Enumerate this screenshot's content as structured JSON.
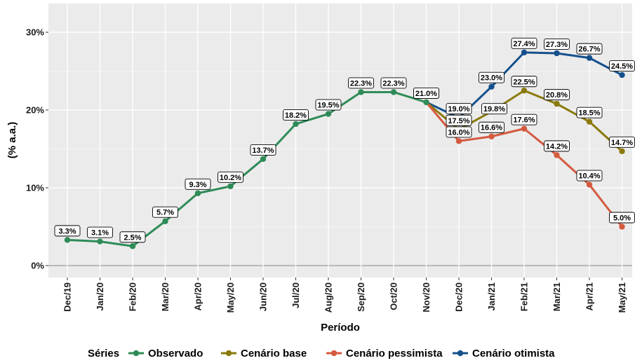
{
  "chart_data": {
    "type": "line",
    "xlabel": "Período",
    "ylabel": "(% a.a.)",
    "categories": [
      "Dec/19",
      "Jan/20",
      "Feb/20",
      "Mar/20",
      "Apr/20",
      "May/20",
      "Jun/20",
      "Jul/20",
      "Aug/20",
      "Sep/20",
      "Oct/20",
      "Nov/20",
      "Dec/20",
      "Jan/21",
      "Feb/21",
      "Mar/21",
      "Apr/21",
      "May/21"
    ],
    "ylim": [
      0,
      32.5
    ],
    "yticks": [
      0,
      10,
      20,
      30
    ],
    "ytick_labels": [
      "0%",
      "10%",
      "20%",
      "30%"
    ],
    "grid": true,
    "legend": {
      "title": "Séries",
      "position": "bottom",
      "entries": [
        "Observado",
        "Cenário base",
        "Cenário pessimista",
        "Cenário otimista"
      ]
    },
    "series": [
      {
        "name": "Observado",
        "color": "#2e8b57",
        "x": [
          "Dec/19",
          "Jan/20",
          "Feb/20",
          "Mar/20",
          "Apr/20",
          "May/20",
          "Jun/20",
          "Jul/20",
          "Aug/20",
          "Sep/20",
          "Oct/20",
          "Nov/20"
        ],
        "values": [
          3.3,
          3.1,
          2.5,
          5.7,
          9.3,
          10.2,
          13.7,
          18.2,
          19.5,
          22.3,
          22.3,
          21.0
        ],
        "labels": [
          "3.3%",
          "3.1%",
          "2.5%",
          "5.7%",
          "9.3%",
          "10.2%",
          "13.7%",
          "18.2%",
          "19.5%",
          "22.3%",
          "22.3%",
          "21.0%"
        ],
        "label_pos": [
          "above",
          "above",
          "above",
          "above",
          "above",
          "above",
          "above",
          "above",
          "above",
          "above",
          "above",
          "above"
        ]
      },
      {
        "name": "Cenário base",
        "color": "#8b7a0c",
        "x": [
          "Nov/20",
          "Dec/20",
          "Jan/21",
          "Feb/21",
          "Mar/21",
          "Apr/21",
          "May/21"
        ],
        "values": [
          21.0,
          17.5,
          19.8,
          22.5,
          20.8,
          18.5,
          14.7
        ],
        "labels": [
          "",
          "17.5%",
          "19.8%",
          "22.5%",
          "20.8%",
          "18.5%",
          "14.7%"
        ],
        "label_pos": [
          "none",
          "above",
          "right",
          "above",
          "above",
          "above",
          "above"
        ]
      },
      {
        "name": "Cenário pessimista",
        "color": "#d45a3f",
        "x": [
          "Nov/20",
          "Dec/20",
          "Jan/21",
          "Feb/21",
          "Mar/21",
          "Apr/21",
          "May/21"
        ],
        "values": [
          21.0,
          16.0,
          16.6,
          17.6,
          14.2,
          10.4,
          5.0
        ],
        "labels": [
          "",
          "16.0%",
          "16.6%",
          "17.6%",
          "14.2%",
          "10.4%",
          "5.0%"
        ],
        "label_pos": [
          "none",
          "above",
          "above",
          "above",
          "above",
          "above",
          "above"
        ]
      },
      {
        "name": "Cenário otimista",
        "color": "#15508c",
        "x": [
          "Nov/20",
          "Dec/20",
          "Jan/21",
          "Feb/21",
          "Mar/21",
          "Apr/21",
          "May/21"
        ],
        "values": [
          21.0,
          19.0,
          23.0,
          27.4,
          27.3,
          26.7,
          24.5
        ],
        "labels": [
          "21.0%",
          "19.0%",
          "23.0%",
          "27.4%",
          "27.3%",
          "26.7%",
          "24.5%"
        ],
        "label_pos": [
          "none",
          "above",
          "above",
          "above",
          "above",
          "above",
          "above"
        ]
      }
    ]
  }
}
